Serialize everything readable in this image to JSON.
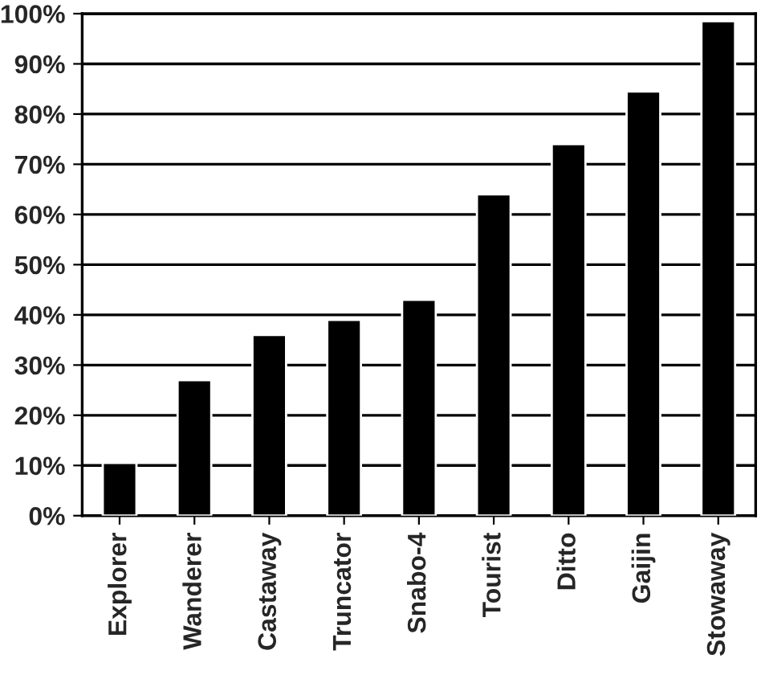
{
  "chart_data": {
    "type": "bar",
    "categories": [
      "Explorer",
      "Wanderer",
      "Castaway",
      "Truncator",
      "Snabo-4",
      "Tourist",
      "Ditto",
      "Gaijin",
      "Stowaway"
    ],
    "values": [
      10.5,
      27,
      36,
      39,
      43,
      64,
      74,
      84.5,
      98.5
    ],
    "color": "#000000",
    "ylim": [
      0,
      100
    ],
    "yticks": [
      {
        "value": 0,
        "label": "0%"
      },
      {
        "value": 10,
        "label": "10%"
      },
      {
        "value": 20,
        "label": "20%"
      },
      {
        "value": 30,
        "label": "30%"
      },
      {
        "value": 40,
        "label": "40%"
      },
      {
        "value": 50,
        "label": "50%"
      },
      {
        "value": 60,
        "label": "60%"
      },
      {
        "value": 70,
        "label": "70%"
      },
      {
        "value": 80,
        "label": "80%"
      },
      {
        "value": 90,
        "label": "90%"
      },
      {
        "value": 100,
        "label": "100%"
      }
    ],
    "grid": "y"
  }
}
